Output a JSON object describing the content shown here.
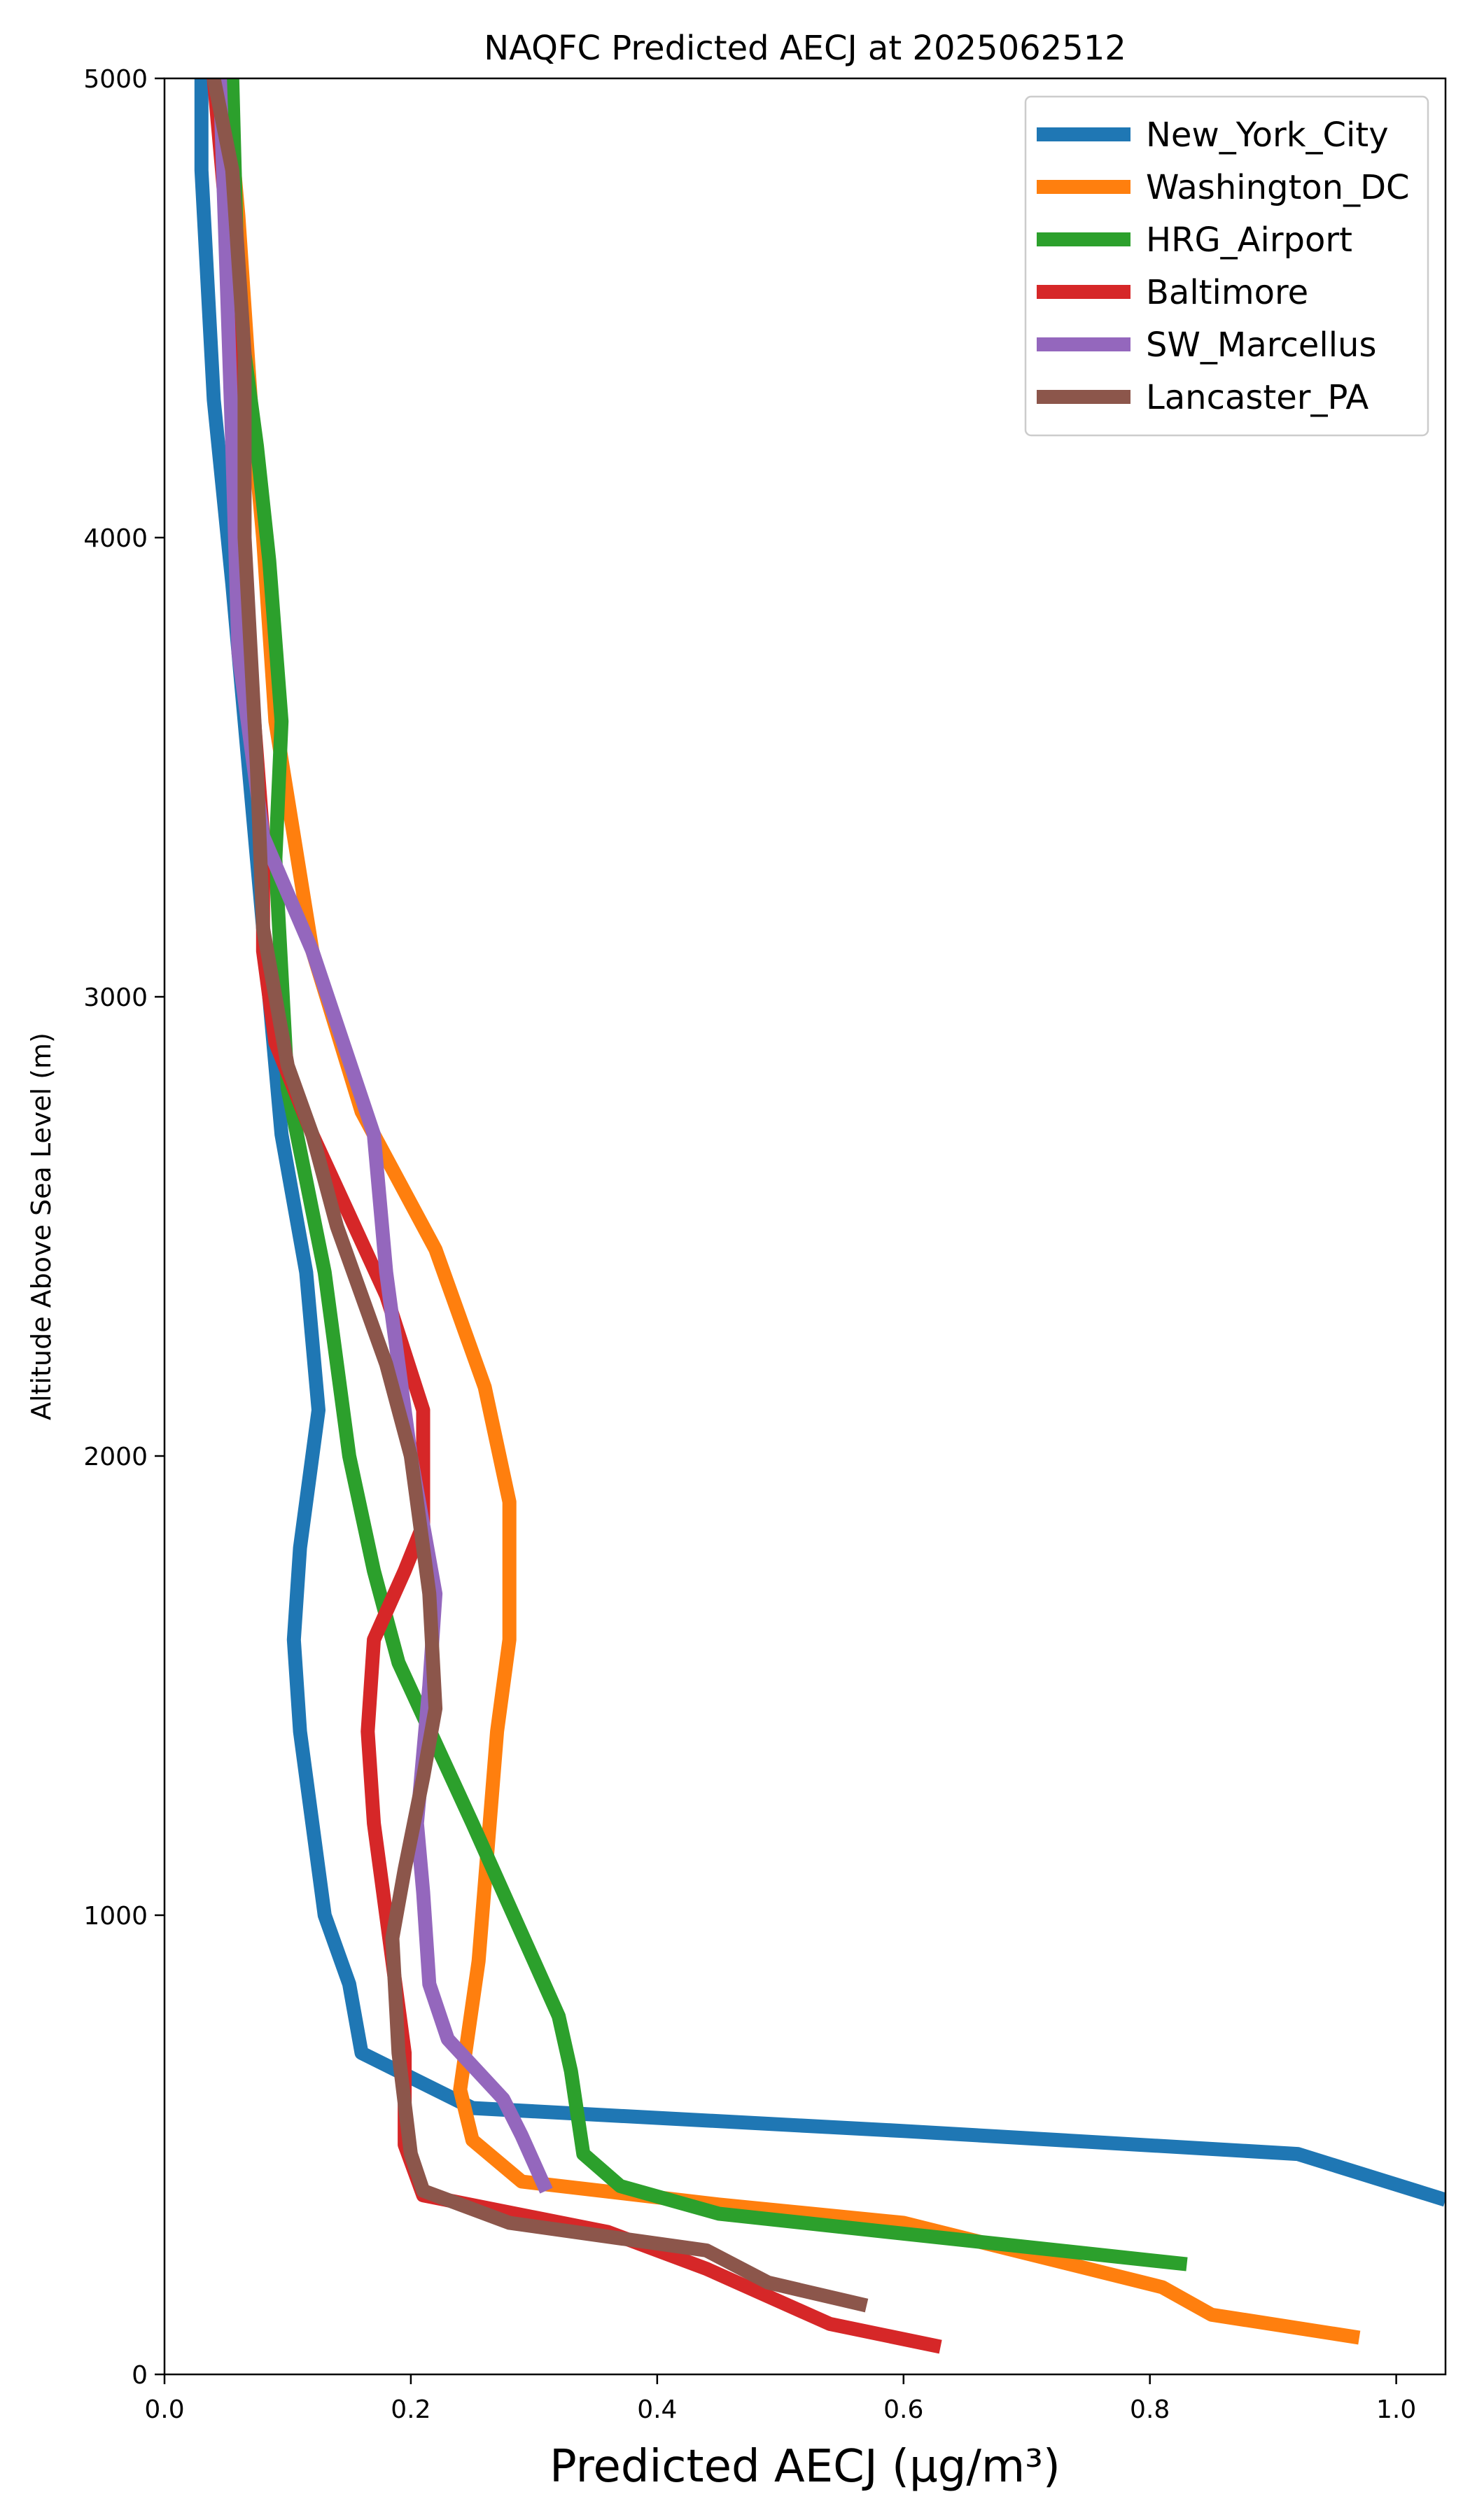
{
  "chart_data": {
    "type": "line",
    "title": "NAQFC Predicted AECJ at 2025062512",
    "xlabel": "Predicted AECJ (μg/m³)",
    "ylabel": "Altitude Above Sea Level (m)",
    "xlim": [
      0.0,
      1.04
    ],
    "ylim": [
      0,
      5000
    ],
    "x_ticks": [
      "0.0",
      "0.2",
      "0.4",
      "0.6",
      "0.8",
      "1.0"
    ],
    "x_tick_values": [
      0.0,
      0.2,
      0.4,
      0.6,
      0.8,
      1.0
    ],
    "y_ticks": [
      "0",
      "1000",
      "2000",
      "3000",
      "4000",
      "5000"
    ],
    "y_tick_values": [
      0,
      1000,
      2000,
      3000,
      4000,
      5000
    ],
    "grid": false,
    "legend_position": "top-right",
    "series": [
      {
        "name": "New_York_City",
        "color": "#1f77b4",
        "points": [
          [
            1.04,
            380
          ],
          [
            0.92,
            480
          ],
          [
            0.6,
            530
          ],
          [
            0.25,
            580
          ],
          [
            0.16,
            700
          ],
          [
            0.15,
            850
          ],
          [
            0.13,
            1000
          ],
          [
            0.12,
            1200
          ],
          [
            0.11,
            1400
          ],
          [
            0.105,
            1600
          ],
          [
            0.11,
            1800
          ],
          [
            0.125,
            2100
          ],
          [
            0.115,
            2400
          ],
          [
            0.095,
            2700
          ],
          [
            0.085,
            3000
          ],
          [
            0.075,
            3300
          ],
          [
            0.065,
            3600
          ],
          [
            0.055,
            3900
          ],
          [
            0.04,
            4300
          ],
          [
            0.03,
            4800
          ],
          [
            0.03,
            5000
          ]
        ]
      },
      {
        "name": "Washington_DC",
        "color": "#ff7f0e",
        "points": [
          [
            0.97,
            80
          ],
          [
            0.85,
            130
          ],
          [
            0.81,
            190
          ],
          [
            0.6,
            330
          ],
          [
            0.45,
            370
          ],
          [
            0.29,
            420
          ],
          [
            0.25,
            510
          ],
          [
            0.24,
            620
          ],
          [
            0.255,
            900
          ],
          [
            0.27,
            1400
          ],
          [
            0.28,
            1600
          ],
          [
            0.28,
            1900
          ],
          [
            0.26,
            2150
          ],
          [
            0.22,
            2450
          ],
          [
            0.16,
            2750
          ],
          [
            0.12,
            3100
          ],
          [
            0.09,
            3600
          ],
          [
            0.08,
            4000
          ],
          [
            0.07,
            4300
          ],
          [
            0.06,
            4700
          ],
          [
            0.05,
            5000
          ]
        ]
      },
      {
        "name": "HRG_Airport",
        "color": "#2ca02c",
        "points": [
          [
            0.83,
            240
          ],
          [
            0.45,
            350
          ],
          [
            0.37,
            410
          ],
          [
            0.34,
            480
          ],
          [
            0.33,
            660
          ],
          [
            0.32,
            780
          ],
          [
            0.3,
            900
          ],
          [
            0.25,
            1200
          ],
          [
            0.19,
            1550
          ],
          [
            0.17,
            1750
          ],
          [
            0.15,
            2000
          ],
          [
            0.13,
            2400
          ],
          [
            0.1,
            2800
          ],
          [
            0.09,
            3300
          ],
          [
            0.095,
            3600
          ],
          [
            0.085,
            3950
          ],
          [
            0.075,
            4200
          ],
          [
            0.06,
            4500
          ],
          [
            0.055,
            5000
          ]
        ]
      },
      {
        "name": "Baltimore",
        "color": "#d62728",
        "points": [
          [
            0.63,
            60
          ],
          [
            0.54,
            110
          ],
          [
            0.49,
            170
          ],
          [
            0.44,
            230
          ],
          [
            0.36,
            310
          ],
          [
            0.21,
            390
          ],
          [
            0.195,
            500
          ],
          [
            0.195,
            700
          ],
          [
            0.18,
            1000
          ],
          [
            0.17,
            1200
          ],
          [
            0.165,
            1400
          ],
          [
            0.17,
            1600
          ],
          [
            0.195,
            1750
          ],
          [
            0.21,
            1850
          ],
          [
            0.21,
            2100
          ],
          [
            0.18,
            2350
          ],
          [
            0.12,
            2700
          ],
          [
            0.09,
            2900
          ],
          [
            0.08,
            3100
          ],
          [
            0.08,
            3350
          ],
          [
            0.07,
            3700
          ],
          [
            0.06,
            4200
          ],
          [
            0.05,
            4700
          ],
          [
            0.04,
            5000
          ]
        ]
      },
      {
        "name": "SW_Marcellus",
        "color": "#9467bd",
        "points": [
          [
            0.31,
            400
          ],
          [
            0.29,
            520
          ],
          [
            0.275,
            600
          ],
          [
            0.23,
            730
          ],
          [
            0.215,
            850
          ],
          [
            0.21,
            1050
          ],
          [
            0.205,
            1200
          ],
          [
            0.215,
            1500
          ],
          [
            0.22,
            1700
          ],
          [
            0.2,
            2000
          ],
          [
            0.18,
            2400
          ],
          [
            0.17,
            2700
          ],
          [
            0.12,
            3100
          ],
          [
            0.08,
            3350
          ],
          [
            0.06,
            3750
          ],
          [
            0.055,
            4200
          ],
          [
            0.05,
            4600
          ],
          [
            0.045,
            5000
          ]
        ]
      },
      {
        "name": "Lancaster_PA",
        "color": "#8c564b",
        "points": [
          [
            0.57,
            150
          ],
          [
            0.49,
            200
          ],
          [
            0.44,
            270
          ],
          [
            0.28,
            330
          ],
          [
            0.21,
            400
          ],
          [
            0.2,
            480
          ],
          [
            0.19,
            700
          ],
          [
            0.185,
            950
          ],
          [
            0.195,
            1100
          ],
          [
            0.21,
            1300
          ],
          [
            0.22,
            1450
          ],
          [
            0.215,
            1700
          ],
          [
            0.2,
            2000
          ],
          [
            0.18,
            2200
          ],
          [
            0.14,
            2500
          ],
          [
            0.12,
            2700
          ],
          [
            0.1,
            2850
          ],
          [
            0.08,
            3150
          ],
          [
            0.075,
            3500
          ],
          [
            0.065,
            4000
          ],
          [
            0.065,
            4400
          ],
          [
            0.055,
            4800
          ],
          [
            0.04,
            5000
          ]
        ]
      }
    ]
  }
}
